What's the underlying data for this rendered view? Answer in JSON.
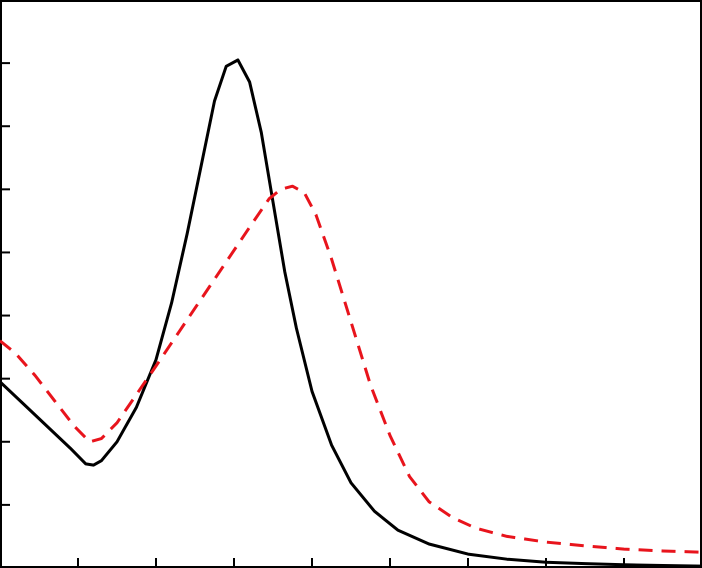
{
  "chart_data": {
    "type": "line",
    "title": "",
    "xlabel": "",
    "ylabel": "",
    "xlim": [
      0,
      9
    ],
    "ylim": [
      0,
      9
    ],
    "x_ticks": [
      1,
      2,
      3,
      4,
      5,
      6,
      7,
      8
    ],
    "y_ticks": [
      1,
      2,
      3,
      4,
      5,
      6,
      7,
      8
    ],
    "grid": false,
    "legend": "none",
    "series": [
      {
        "style": "solid",
        "color": "#000000",
        "points": [
          [
            0.0,
            2.95
          ],
          [
            0.3,
            2.6
          ],
          [
            0.6,
            2.25
          ],
          [
            0.9,
            1.9
          ],
          [
            1.1,
            1.65
          ],
          [
            1.2,
            1.63
          ],
          [
            1.3,
            1.7
          ],
          [
            1.5,
            2.0
          ],
          [
            1.75,
            2.55
          ],
          [
            2.0,
            3.3
          ],
          [
            2.2,
            4.2
          ],
          [
            2.4,
            5.3
          ],
          [
            2.6,
            6.5
          ],
          [
            2.75,
            7.4
          ],
          [
            2.9,
            7.95
          ],
          [
            3.05,
            8.05
          ],
          [
            3.2,
            7.7
          ],
          [
            3.35,
            6.9
          ],
          [
            3.5,
            5.8
          ],
          [
            3.65,
            4.7
          ],
          [
            3.8,
            3.8
          ],
          [
            4.0,
            2.8
          ],
          [
            4.25,
            1.95
          ],
          [
            4.5,
            1.35
          ],
          [
            4.8,
            0.9
          ],
          [
            5.1,
            0.6
          ],
          [
            5.5,
            0.38
          ],
          [
            6.0,
            0.22
          ],
          [
            6.5,
            0.14
          ],
          [
            7.0,
            0.09
          ],
          [
            7.5,
            0.07
          ],
          [
            8.0,
            0.05
          ],
          [
            8.5,
            0.04
          ],
          [
            9.0,
            0.03
          ]
        ]
      },
      {
        "style": "dashed",
        "color": "#e8141c",
        "points": [
          [
            0.0,
            3.6
          ],
          [
            0.2,
            3.4
          ],
          [
            0.45,
            3.05
          ],
          [
            0.7,
            2.65
          ],
          [
            0.95,
            2.25
          ],
          [
            1.15,
            2.0
          ],
          [
            1.3,
            2.05
          ],
          [
            1.5,
            2.3
          ],
          [
            1.75,
            2.75
          ],
          [
            2.0,
            3.2
          ],
          [
            2.3,
            3.75
          ],
          [
            2.6,
            4.3
          ],
          [
            2.9,
            4.85
          ],
          [
            3.2,
            5.4
          ],
          [
            3.45,
            5.85
          ],
          [
            3.6,
            6.0
          ],
          [
            3.75,
            6.05
          ],
          [
            3.9,
            5.95
          ],
          [
            4.05,
            5.6
          ],
          [
            4.25,
            4.9
          ],
          [
            4.5,
            3.9
          ],
          [
            4.75,
            2.9
          ],
          [
            5.0,
            2.1
          ],
          [
            5.25,
            1.45
          ],
          [
            5.5,
            1.05
          ],
          [
            5.8,
            0.8
          ],
          [
            6.1,
            0.63
          ],
          [
            6.5,
            0.5
          ],
          [
            7.0,
            0.41
          ],
          [
            7.5,
            0.35
          ],
          [
            8.0,
            0.3
          ],
          [
            8.5,
            0.27
          ],
          [
            9.0,
            0.25
          ]
        ]
      }
    ]
  }
}
